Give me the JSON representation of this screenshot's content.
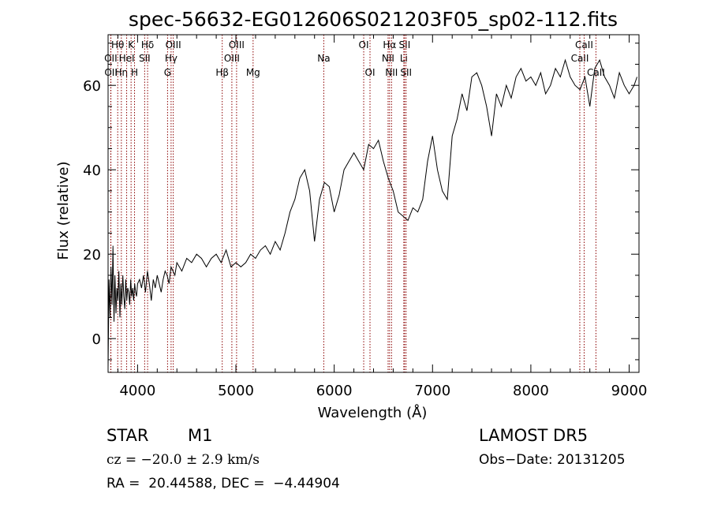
{
  "chart_data": {
    "type": "line",
    "title": "spec-56632-EG012606S021203F05_sp02-112.fits",
    "xlabel": "Wavelength (Å)",
    "ylabel": "Flux (relative)",
    "xlim": [
      3700,
      9100
    ],
    "ylim": [
      -8,
      72
    ],
    "xticks": [
      4000,
      5000,
      6000,
      7000,
      8000,
      9000
    ],
    "yticks": [
      0,
      20,
      40,
      60
    ],
    "grid": false,
    "series": [
      {
        "x": [
          3700,
          3710,
          3720,
          3730,
          3740,
          3750,
          3760,
          3770,
          3780,
          3790,
          3800,
          3810,
          3820,
          3830,
          3840,
          3850,
          3860,
          3870,
          3880,
          3890,
          3900,
          3910,
          3920,
          3930,
          3940,
          3950,
          3960,
          3970,
          3980,
          3990,
          4000,
          4020,
          4040,
          4060,
          4080,
          4100,
          4120,
          4140,
          4160,
          4180,
          4200,
          4220,
          4240,
          4260,
          4280,
          4300,
          4320,
          4340,
          4360,
          4380,
          4400,
          4450,
          4500,
          4550,
          4600,
          4650,
          4700,
          4750,
          4800,
          4850,
          4900,
          4950,
          5000,
          5050,
          5100,
          5150,
          5200,
          5250,
          5300,
          5350,
          5400,
          5450,
          5500,
          5550,
          5600,
          5650,
          5700,
          5750,
          5800,
          5850,
          5900,
          5950,
          6000,
          6050,
          6100,
          6150,
          6200,
          6250,
          6300,
          6350,
          6400,
          6450,
          6500,
          6550,
          6600,
          6650,
          6700,
          6750,
          6800,
          6850,
          6900,
          6950,
          7000,
          7050,
          7100,
          7150,
          7200,
          7250,
          7300,
          7350,
          7400,
          7450,
          7500,
          7550,
          7600,
          7650,
          7700,
          7750,
          7800,
          7850,
          7900,
          7950,
          8000,
          8050,
          8100,
          8150,
          8200,
          8250,
          8300,
          8350,
          8400,
          8450,
          8500,
          8550,
          8600,
          8650,
          8700,
          8750,
          8800,
          8850,
          8900,
          8950,
          9000,
          9050,
          9080
        ],
        "y": [
          -7,
          14,
          5,
          17,
          8,
          22,
          4,
          15,
          6,
          12,
          9,
          16,
          5,
          13,
          8,
          15,
          10,
          7,
          14,
          9,
          12,
          11,
          8,
          14,
          10,
          12,
          9,
          13,
          11,
          10,
          13,
          14,
          12,
          15,
          11,
          16,
          13,
          9,
          14,
          12,
          15,
          13,
          11,
          14,
          16,
          15,
          13,
          17,
          16,
          15,
          18,
          16,
          19,
          18,
          20,
          19,
          17,
          19,
          20,
          18,
          21,
          17,
          18,
          17,
          18,
          20,
          19,
          21,
          22,
          20,
          23,
          21,
          25,
          30,
          33,
          38,
          40,
          35,
          23,
          33,
          37,
          36,
          30,
          34,
          40,
          42,
          44,
          42,
          40,
          46,
          45,
          47,
          42,
          38,
          35,
          30,
          29,
          28,
          31,
          30,
          33,
          42,
          48,
          40,
          35,
          33,
          48,
          52,
          58,
          54,
          62,
          63,
          60,
          55,
          48,
          58,
          55,
          60,
          57,
          62,
          64,
          61,
          62,
          60,
          63,
          58,
          60,
          64,
          62,
          66,
          62,
          60,
          59,
          62,
          55,
          64,
          66,
          62,
          60,
          57,
          63,
          60,
          58,
          60,
          62
        ],
        "color": "#000000"
      }
    ],
    "spectral_lines": {
      "color": "#8b0000",
      "lines": [
        {
          "label": "Hθ",
          "x": 3798,
          "row": 0
        },
        {
          "label": "OII",
          "x": 3727,
          "row": 1
        },
        {
          "label": "OII",
          "x": 3729,
          "row": 2
        },
        {
          "label": "Hη",
          "x": 3835,
          "row": 2
        },
        {
          "label": "HeI",
          "x": 3889,
          "row": 1
        },
        {
          "label": "K",
          "x": 3934,
          "row": 0
        },
        {
          "label": "H",
          "x": 3969,
          "row": 2
        },
        {
          "label": "SII",
          "x": 4072,
          "row": 1
        },
        {
          "label": "Hδ",
          "x": 4102,
          "row": 0
        },
        {
          "label": "G",
          "x": 4305,
          "row": 2
        },
        {
          "label": "Hγ",
          "x": 4341,
          "row": 1
        },
        {
          "label": "OIII",
          "x": 4363,
          "row": 0
        },
        {
          "label": "Hβ",
          "x": 4861,
          "row": 2
        },
        {
          "label": "OIII",
          "x": 4959,
          "row": 1
        },
        {
          "label": "OIII",
          "x": 5007,
          "row": 0
        },
        {
          "label": "Mg",
          "x": 5175,
          "row": 2
        },
        {
          "label": "Na",
          "x": 5894,
          "row": 1
        },
        {
          "label": "OI",
          "x": 6300,
          "row": 0
        },
        {
          "label": "OI",
          "x": 6364,
          "row": 2
        },
        {
          "label": "NII",
          "x": 6548,
          "row": 1
        },
        {
          "label": "Hα",
          "x": 6563,
          "row": 0
        },
        {
          "label": "NII",
          "x": 6583,
          "row": 2
        },
        {
          "label": "Li",
          "x": 6708,
          "row": 1
        },
        {
          "label": "SII",
          "x": 6716,
          "row": 0
        },
        {
          "label": "SII",
          "x": 6731,
          "row": 2
        },
        {
          "label": "CaII",
          "x": 8498,
          "row": 1
        },
        {
          "label": "CaII",
          "x": 8542,
          "row": 0
        },
        {
          "label": "CaII",
          "x": 8662,
          "row": 2
        }
      ]
    }
  },
  "info": {
    "object_class": "STAR",
    "subclass": "M1",
    "survey": "LAMOST DR5",
    "redshift": "cz = −20.0 ± 2.9 km/s",
    "obs_date": "Obs−Date: 20131205",
    "coords": "RA =  20.44588, DEC =  −4.44904"
  }
}
